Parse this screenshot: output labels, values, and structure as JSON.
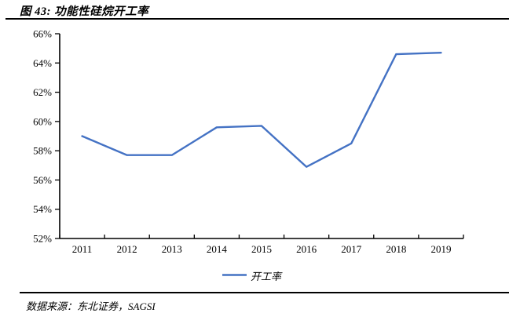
{
  "header": {
    "title": "图 43: 功能性硅烷开工率"
  },
  "footer": {
    "source": "数据来源：东北证券，SAGSI"
  },
  "chart_data": {
    "type": "line",
    "title": "图 43: 功能性硅烷开工率",
    "categories": [
      "2011",
      "2012",
      "2013",
      "2014",
      "2015",
      "2016",
      "2017",
      "2018",
      "2019"
    ],
    "series": [
      {
        "name": "开工率",
        "color": "#4472C4",
        "values": [
          59.0,
          57.7,
          57.7,
          59.6,
          59.7,
          56.9,
          58.5,
          64.6,
          64.7
        ]
      }
    ],
    "xlabel": "",
    "ylabel": "",
    "ylim": [
      52,
      66
    ],
    "y_tick_step": 2,
    "y_tick_labels": [
      "52%",
      "54%",
      "56%",
      "58%",
      "60%",
      "62%",
      "64%",
      "66%"
    ],
    "grid": false,
    "legend": {
      "label": "开工率",
      "position": "bottom-center"
    },
    "axis_color": "#000000"
  }
}
